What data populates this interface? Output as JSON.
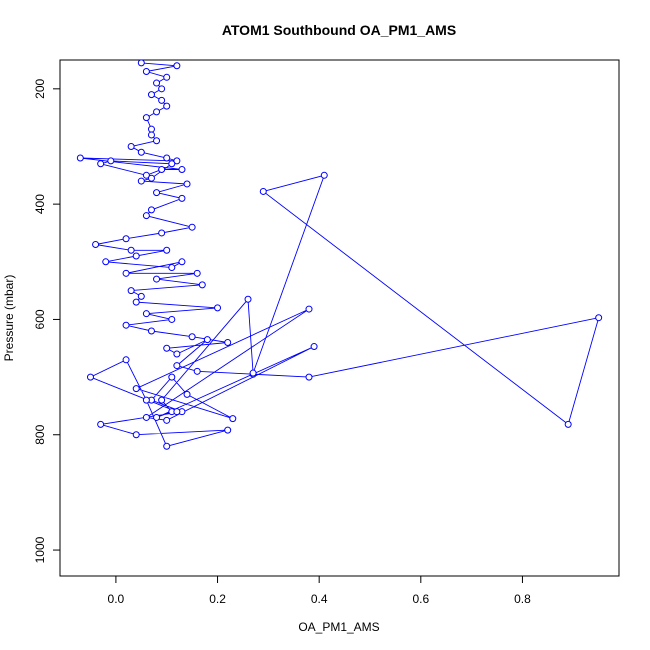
{
  "chart_data": {
    "type": "line",
    "title": "ATOM1 Southbound OA_PM1_AMS",
    "xlabel": "OA_PM1_AMS",
    "ylabel": "Pressure (mbar)",
    "xlim": [
      -0.11,
      0.99
    ],
    "ylim": [
      1045,
      150
    ],
    "y_reversed": true,
    "xticks": [
      0.0,
      0.2,
      0.4,
      0.6,
      0.8
    ],
    "xtick_labels": [
      "0.0",
      "0.2",
      "0.4",
      "0.6",
      "0.8"
    ],
    "yticks": [
      200,
      400,
      600,
      800,
      1000
    ],
    "ytick_labels": [
      "200",
      "400",
      "600",
      "800",
      "1000"
    ],
    "grid": false,
    "legend": "none",
    "color": "#0000ff",
    "marker": "open-circle",
    "series": [
      {
        "x": [
          0.05,
          0.12,
          0.06,
          0.1,
          0.08,
          0.09,
          0.07,
          0.09,
          0.1,
          0.08,
          0.06,
          0.07,
          0.07,
          0.08,
          0.03,
          0.05,
          0.1,
          0.12,
          -0.07,
          0.13,
          0.09,
          0.06,
          -0.03,
          -0.01,
          0.11,
          0.07,
          0.05,
          0.14,
          0.08,
          0.13,
          0.07,
          0.06,
          0.15,
          0.09,
          0.02,
          -0.04,
          0.03,
          0.1,
          0.04,
          -0.02,
          0.11,
          0.13,
          0.02,
          0.16,
          0.08,
          0.17,
          0.03,
          0.05,
          0.04,
          0.2,
          0.06,
          0.11,
          0.02,
          0.07,
          0.15,
          0.22,
          0.1,
          0.12,
          0.18,
          0.12,
          0.16,
          0.27,
          0.38,
          0.95,
          0.89,
          0.29,
          0.41,
          0.27,
          0.26,
          0.09,
          0.11,
          0.08,
          0.39,
          0.1,
          0.06,
          0.38,
          0.04,
          0.23,
          0.14,
          0.11,
          0.07,
          0.13,
          -0.03,
          0.04,
          0.22,
          0.1,
          0.06,
          0.02,
          -0.05,
          0.12
        ],
        "y": [
          155,
          160,
          170,
          180,
          190,
          200,
          210,
          220,
          230,
          240,
          250,
          270,
          280,
          290,
          300,
          310,
          320,
          325,
          320,
          340,
          340,
          350,
          330,
          325,
          330,
          355,
          360,
          365,
          380,
          390,
          410,
          420,
          440,
          450,
          460,
          470,
          480,
          480,
          490,
          500,
          510,
          500,
          520,
          520,
          530,
          540,
          550,
          560,
          570,
          580,
          590,
          600,
          610,
          620,
          630,
          640,
          650,
          660,
          635,
          680,
          690,
          695,
          700,
          597,
          782,
          378,
          350,
          693,
          565,
          740,
          760,
          770,
          647,
          775,
          770,
          582,
          720,
          772,
          730,
          700,
          740,
          760,
          782,
          800,
          792,
          820,
          740,
          670,
          700,
          760
        ]
      }
    ]
  }
}
